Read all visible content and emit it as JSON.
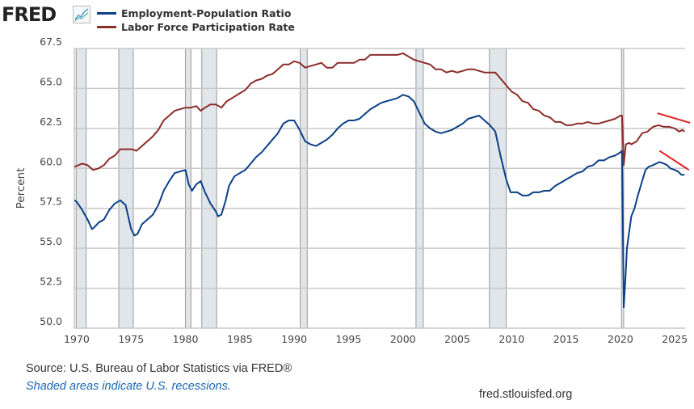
{
  "header": {
    "logo_text": "FRED"
  },
  "footer": {
    "source": "Source: U.S. Bureau of Labor Statistics via FRED®",
    "note": "Shaded areas indicate U.S. recessions.",
    "url": "fred.stlouisfed.org"
  },
  "chart_data": {
    "type": "line",
    "title": "",
    "xlabel": "",
    "ylabel": "Percent",
    "xlim": [
      1969.78,
      2025.95
    ],
    "ylim": [
      50,
      67.5
    ],
    "grid": true,
    "legend_position": "top-left",
    "x_ticks": [
      "1970",
      "1975",
      "1980",
      "1985",
      "1990",
      "1995",
      "2000",
      "2005",
      "2010",
      "2015",
      "2020",
      "2025"
    ],
    "y_ticks": [
      "50.0",
      "52.5",
      "55.0",
      "57.5",
      "60.0",
      "62.5",
      "65.0",
      "67.5"
    ],
    "recessions": [
      [
        1969.95,
        1970.87
      ],
      [
        1973.87,
        1975.2
      ],
      [
        1980.0,
        1980.5
      ],
      [
        1981.5,
        1982.87
      ],
      [
        1990.55,
        1991.2
      ],
      [
        2001.2,
        2001.87
      ],
      [
        2007.95,
        2009.5
      ],
      [
        2020.1,
        2020.3
      ]
    ],
    "series": [
      {
        "name": "Employment-Population Ratio",
        "color": "#0b3f86",
        "x": [
          1969.8,
          1970.0,
          1970.5,
          1971.0,
          1971.4,
          1971.6,
          1972.0,
          1972.5,
          1973.0,
          1973.5,
          1974.0,
          1974.5,
          1975.0,
          1975.3,
          1975.6,
          1976.0,
          1976.5,
          1977.0,
          1977.5,
          1978.0,
          1978.5,
          1979.0,
          1979.5,
          1980.0,
          1980.3,
          1980.6,
          1981.0,
          1981.4,
          1981.8,
          1982.3,
          1982.8,
          1983.0,
          1983.3,
          1983.7,
          1984.0,
          1984.5,
          1985.0,
          1985.5,
          1986.0,
          1986.5,
          1987.0,
          1987.5,
          1988.0,
          1988.5,
          1989.0,
          1989.5,
          1990.0,
          1990.5,
          1991.0,
          1991.5,
          1992.0,
          1992.5,
          1993.0,
          1993.5,
          1994.0,
          1994.5,
          1995.0,
          1995.5,
          1996.0,
          1996.5,
          1997.0,
          1997.5,
          1998.0,
          1998.5,
          1999.0,
          1999.5,
          2000.0,
          2000.5,
          2001.0,
          2001.5,
          2002.0,
          2002.5,
          2003.0,
          2003.5,
          2004.0,
          2004.5,
          2005.0,
          2005.5,
          2006.0,
          2006.5,
          2007.0,
          2007.5,
          2008.0,
          2008.5,
          2009.0,
          2009.5,
          2009.9,
          2010.5,
          2011.0,
          2011.5,
          2012.0,
          2012.5,
          2013.0,
          2013.5,
          2014.0,
          2014.5,
          2015.0,
          2015.5,
          2016.0,
          2016.5,
          2017.0,
          2017.5,
          2018.0,
          2018.5,
          2019.0,
          2019.5,
          2020.0,
          2020.15,
          2020.3,
          2020.45,
          2020.6,
          2021.0,
          2021.3,
          2021.6,
          2022.0,
          2022.3,
          2022.6,
          2023.0,
          2023.3,
          2023.6,
          2024.0,
          2024.3,
          2024.6,
          2025.0,
          2025.3,
          2025.6,
          2025.9
        ],
        "y": [
          58.0,
          57.9,
          57.4,
          56.8,
          56.2,
          56.3,
          56.6,
          56.8,
          57.4,
          57.8,
          58.0,
          57.7,
          56.2,
          55.8,
          55.9,
          56.5,
          56.8,
          57.1,
          57.7,
          58.6,
          59.2,
          59.7,
          59.8,
          59.9,
          59.0,
          58.6,
          59.0,
          59.2,
          58.5,
          57.8,
          57.3,
          57.0,
          57.1,
          58.0,
          58.9,
          59.5,
          59.7,
          59.9,
          60.3,
          60.7,
          61.0,
          61.4,
          61.8,
          62.2,
          62.8,
          63.0,
          63.0,
          62.4,
          61.7,
          61.5,
          61.4,
          61.6,
          61.8,
          62.1,
          62.5,
          62.8,
          63.0,
          63.0,
          63.1,
          63.4,
          63.7,
          63.9,
          64.1,
          64.2,
          64.3,
          64.4,
          64.6,
          64.5,
          64.2,
          63.5,
          62.8,
          62.5,
          62.3,
          62.2,
          62.3,
          62.4,
          62.6,
          62.8,
          63.1,
          63.2,
          63.3,
          63.0,
          62.7,
          62.3,
          60.7,
          59.3,
          58.5,
          58.5,
          58.3,
          58.3,
          58.5,
          58.5,
          58.6,
          58.6,
          58.9,
          59.1,
          59.3,
          59.5,
          59.7,
          59.8,
          60.1,
          60.2,
          60.5,
          60.5,
          60.7,
          60.8,
          61.0,
          61.1,
          51.3,
          53.0,
          55.0,
          57.0,
          57.5,
          58.3,
          59.2,
          59.9,
          60.1,
          60.2,
          60.3,
          60.4,
          60.3,
          60.2,
          60.0,
          59.9,
          59.8,
          59.6,
          59.6
        ]
      },
      {
        "name": "Labor Force Participation Rate",
        "color": "#8b2d2a",
        "x": [
          1969.8,
          1970.5,
          1971.0,
          1971.5,
          1972.0,
          1972.5,
          1973.0,
          1973.5,
          1974.0,
          1974.5,
          1975.0,
          1975.5,
          1976.0,
          1976.5,
          1977.0,
          1977.5,
          1978.0,
          1978.5,
          1979.0,
          1979.5,
          1980.0,
          1980.5,
          1981.0,
          1981.4,
          1981.8,
          1982.3,
          1982.8,
          1983.3,
          1983.8,
          1984.3,
          1985.0,
          1985.5,
          1986.0,
          1986.5,
          1987.0,
          1987.5,
          1988.0,
          1988.5,
          1989.0,
          1989.5,
          1990.0,
          1990.5,
          1991.0,
          1991.5,
          1992.0,
          1992.5,
          1993.0,
          1993.5,
          1994.0,
          1994.5,
          1995.0,
          1995.5,
          1996.0,
          1996.5,
          1997.0,
          1997.5,
          1998.0,
          1998.5,
          1999.0,
          1999.5,
          2000.0,
          2000.5,
          2001.0,
          2001.5,
          2002.0,
          2002.5,
          2003.0,
          2003.5,
          2004.0,
          2004.5,
          2005.0,
          2005.5,
          2006.0,
          2006.5,
          2007.0,
          2007.5,
          2008.0,
          2008.5,
          2009.0,
          2009.5,
          2010.0,
          2010.5,
          2011.0,
          2011.5,
          2012.0,
          2012.5,
          2013.0,
          2013.5,
          2014.0,
          2014.5,
          2015.0,
          2015.5,
          2016.0,
          2016.5,
          2017.0,
          2017.5,
          2018.0,
          2018.5,
          2019.0,
          2019.5,
          2020.0,
          2020.15,
          2020.3,
          2020.5,
          2020.8,
          2021.0,
          2021.5,
          2022.0,
          2022.5,
          2023.0,
          2023.5,
          2024.0,
          2024.5,
          2025.0,
          2025.4,
          2025.7,
          2025.9
        ],
        "y": [
          60.1,
          60.3,
          60.2,
          59.9,
          60.0,
          60.2,
          60.6,
          60.8,
          61.2,
          61.2,
          61.2,
          61.1,
          61.4,
          61.7,
          62.0,
          62.4,
          63.0,
          63.3,
          63.6,
          63.7,
          63.8,
          63.8,
          63.9,
          63.6,
          63.8,
          64.0,
          64.0,
          63.8,
          64.2,
          64.4,
          64.7,
          64.9,
          65.3,
          65.5,
          65.6,
          65.8,
          65.9,
          66.2,
          66.5,
          66.5,
          66.7,
          66.6,
          66.3,
          66.4,
          66.5,
          66.6,
          66.3,
          66.3,
          66.6,
          66.6,
          66.6,
          66.6,
          66.8,
          66.8,
          67.1,
          67.1,
          67.1,
          67.1,
          67.1,
          67.1,
          67.2,
          67.0,
          66.8,
          66.7,
          66.6,
          66.5,
          66.2,
          66.2,
          66.0,
          66.1,
          66.0,
          66.1,
          66.2,
          66.2,
          66.1,
          66.0,
          66.0,
          66.0,
          65.6,
          65.2,
          64.8,
          64.6,
          64.2,
          64.1,
          63.7,
          63.6,
          63.3,
          63.2,
          62.9,
          62.9,
          62.7,
          62.7,
          62.8,
          62.8,
          62.9,
          62.8,
          62.8,
          62.9,
          63.0,
          63.1,
          63.3,
          63.3,
          60.2,
          61.5,
          61.6,
          61.5,
          61.7,
          62.2,
          62.3,
          62.6,
          62.7,
          62.6,
          62.6,
          62.5,
          62.3,
          62.4,
          62.3
        ]
      }
    ],
    "annotations": [
      {
        "type": "trend-line",
        "color": "#e0201f",
        "x": [
          2023.4,
          2026.4
        ],
        "y": [
          63.45,
          62.85
        ]
      },
      {
        "type": "trend-line",
        "color": "#e0201f",
        "x": [
          2023.6,
          2026.3
        ],
        "y": [
          61.1,
          59.9
        ]
      }
    ]
  }
}
